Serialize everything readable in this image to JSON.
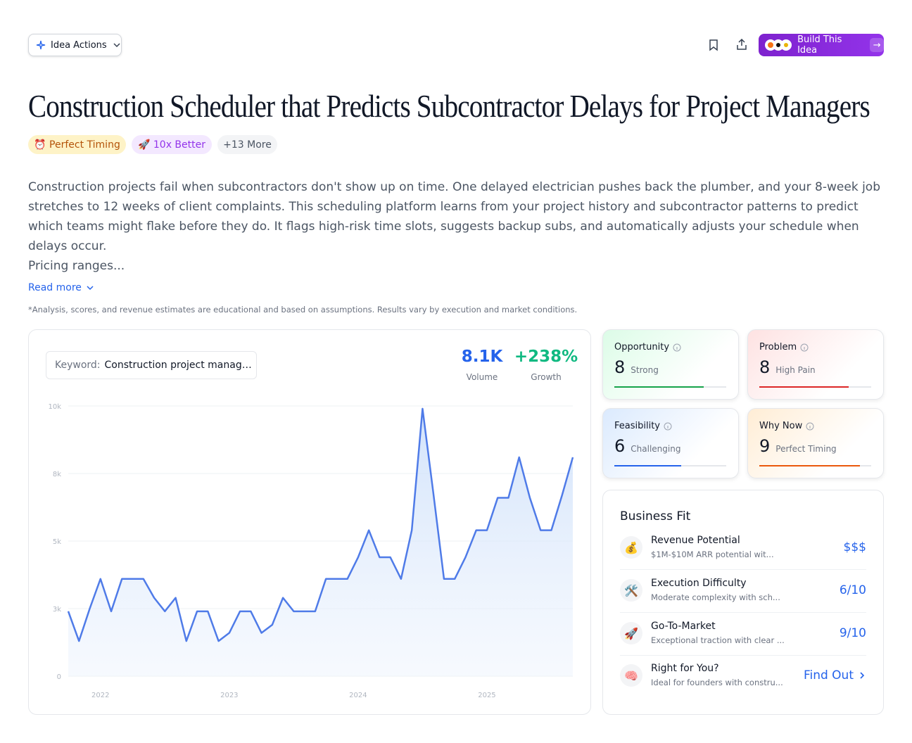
{
  "header": {
    "actions_label": "Idea Actions",
    "build_label": "Build This Idea"
  },
  "title": "Construction Scheduler that Predicts Subcontractor Delays for Project Managers",
  "tags": [
    "⏰ Perfect Timing",
    "🚀 10x Better",
    "+13 More"
  ],
  "description": "Construction projects fail when subcontractors don't show up on time. One delayed electrician pushes back the plumber, and your 8-week job stretches to 12 weeks of client complaints. This scheduling platform learns from your project history and subcontractor patterns to predict which teams might flake before they do. It flags high-risk time slots, suggests backup subs, and automatically adjusts your schedule when delays occur.",
  "pricing": "Pricing ranges...",
  "read_more": "Read more",
  "disclaimer": "*Analysis, scores, and revenue estimates are educational and based on assumptions. Results vary by execution and market conditions.",
  "keyword": {
    "label": "Keyword:",
    "value": "Construction project manag…"
  },
  "stats": [
    {
      "value": "8.1K",
      "label": "Volume"
    },
    {
      "value": "+238%",
      "label": "Growth"
    }
  ],
  "chart_data": {
    "type": "line",
    "color": "#4f7be8",
    "categories": [
      null,
      null,
      null,
      "2022",
      null,
      null,
      null,
      null,
      null,
      null,
      null,
      null,
      null,
      null,
      null,
      "2023",
      null,
      null,
      null,
      null,
      null,
      null,
      null,
      null,
      null,
      null,
      null,
      "2024",
      null,
      null,
      null,
      null,
      null,
      null,
      null,
      null,
      null,
      null,
      null,
      "2025",
      null,
      null,
      null,
      null,
      null,
      null,
      null,
      null
    ],
    "values": [
      2400,
      1300,
      2500,
      3600,
      2400,
      3600,
      3600,
      3600,
      2900,
      2400,
      2900,
      1300,
      2400,
      2400,
      1300,
      1600,
      2400,
      2400,
      1600,
      1900,
      2900,
      2400,
      2400,
      2400,
      3600,
      3600,
      3600,
      4400,
      5400,
      4400,
      4400,
      3600,
      5400,
      9900,
      6800,
      3600,
      3600,
      4400,
      5400,
      5400,
      6600,
      6600,
      8100,
      6600,
      5400,
      5400,
      6700,
      8100
    ],
    "ylim": [
      0,
      10000
    ],
    "yticks": [
      0,
      {
        "value": 2500,
        "label": "3k"
      },
      {
        "value": 5000,
        "label": "5k"
      },
      {
        "value": 7500,
        "label": "8k"
      },
      {
        "value": 10000,
        "label": "10k"
      }
    ],
    "grid": true
  },
  "score_range": [
    0,
    10
  ],
  "scores": [
    {
      "label": "Opportunity",
      "score": 8,
      "verdict": "Strong",
      "color": "#16a34a"
    },
    {
      "label": "Problem",
      "score": 8,
      "verdict": "High Pain",
      "color": "#dc2626"
    },
    {
      "label": "Feasibility",
      "score": 6,
      "verdict": "Challenging",
      "color": "#2563eb"
    },
    {
      "label": "Why Now",
      "score": 9,
      "verdict": "Perfect Timing",
      "color": "#ea580c"
    }
  ],
  "business_fit": {
    "title": "Business Fit",
    "items": [
      {
        "icon": "💰",
        "title": "Revenue Potential",
        "desc": "$1M-$10M ARR potential wit...",
        "value": "$$$"
      },
      {
        "icon": "🛠️",
        "title": "Execution Difficulty",
        "desc": "Moderate complexity with sch...",
        "value": "6/10"
      },
      {
        "icon": "🚀",
        "title": "Go-To-Market",
        "desc": "Exceptional traction with clear ...",
        "value": "9/10"
      },
      {
        "icon": "🧠",
        "title": "Right for You?",
        "desc": "Ideal for founders with constru...",
        "value": "Find Out"
      }
    ]
  }
}
